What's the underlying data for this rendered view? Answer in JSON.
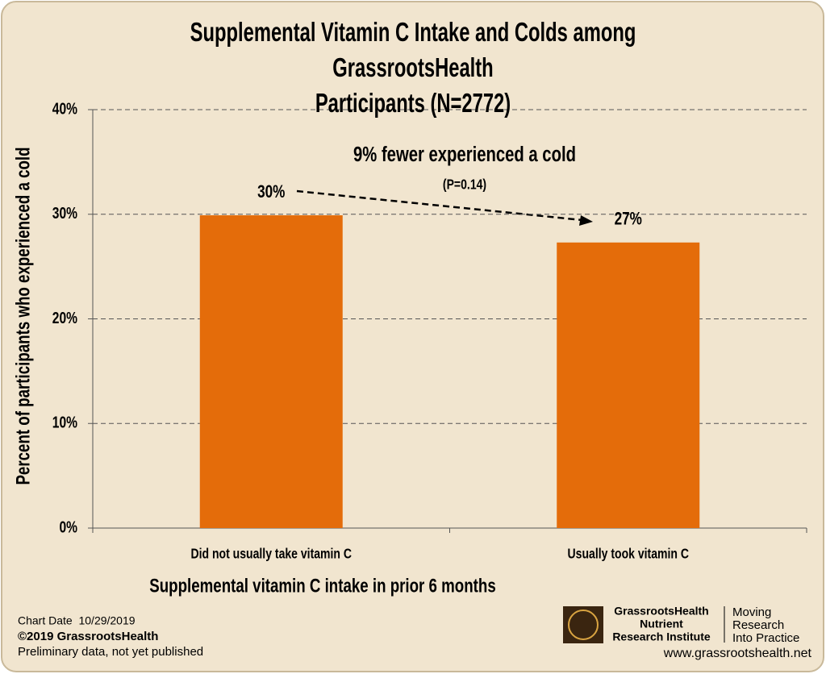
{
  "chart_data": {
    "type": "bar",
    "title": "Supplemental Vitamin C Intake and Colds among GrassrootsHealth\nParticipants (N=2772)",
    "x_label": "Supplemental vitamin C intake in prior 6 months",
    "y_label": "Percent of participants who experienced a cold",
    "categories": [
      "Did not usually take vitamin C",
      "Usually took vitamin C"
    ],
    "values": [
      29.9,
      27.3
    ],
    "value_labels": [
      "30%",
      "27%"
    ],
    "color": "#e46c0a",
    "ylim": [
      0,
      40
    ],
    "yticks": [
      {
        "value": 0,
        "label": "0%"
      },
      {
        "value": 10,
        "label": "10%"
      },
      {
        "value": 20,
        "label": "20%"
      },
      {
        "value": 30,
        "label": "30%"
      },
      {
        "value": 40,
        "label": "40%"
      }
    ],
    "grid": true,
    "annotations": [
      "9% fewer experienced a cold",
      "(P=0.14)"
    ]
  },
  "footer": {
    "chart_date": "Chart Date  10/29/2019",
    "copyright": "©2019 GrassrootsHealth",
    "note": "Preliminary data, not yet published",
    "logo": [
      "GrassrootsHealth",
      "Nutrient",
      "Research Institute"
    ],
    "tagline": [
      "Moving",
      "Research",
      "Into Practice"
    ],
    "url": "www.grassrootshealth.net"
  }
}
